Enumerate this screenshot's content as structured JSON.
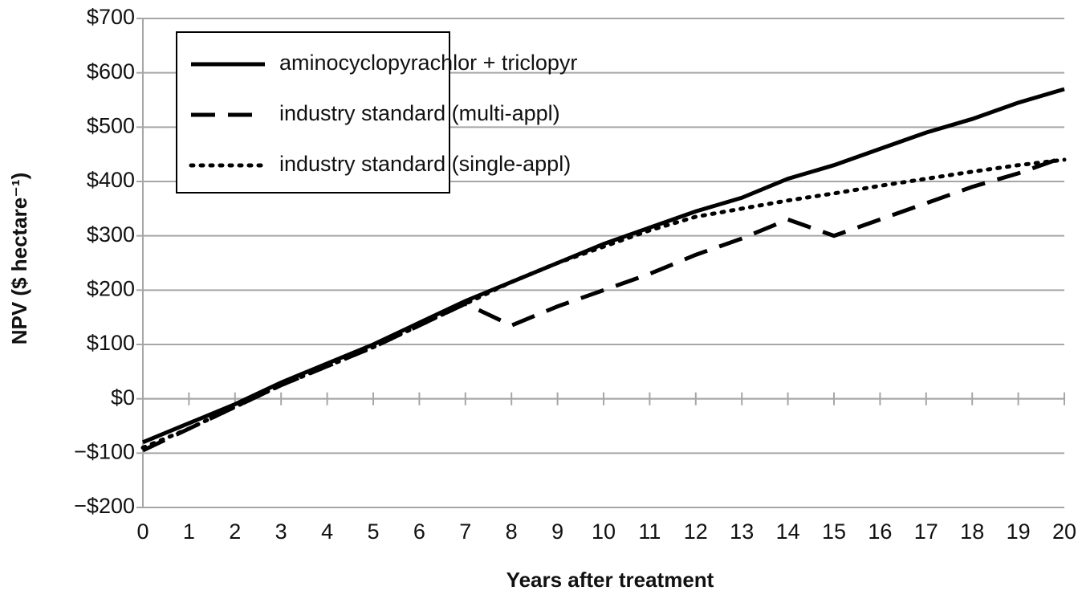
{
  "chart_data": {
    "type": "line",
    "x_label": "Years after treatment",
    "y_label": "NPV ($ hectare⁻¹)",
    "x": [
      0,
      1,
      2,
      3,
      4,
      5,
      6,
      7,
      8,
      9,
      10,
      11,
      12,
      13,
      14,
      15,
      16,
      17,
      18,
      19,
      20
    ],
    "series": [
      {
        "name": "aminocyclopyrachlor + triclopyr",
        "color": "#000000",
        "style": "solid",
        "values": [
          -80,
          -45,
          -10,
          30,
          65,
          100,
          140,
          180,
          215,
          250,
          285,
          315,
          345,
          370,
          405,
          430,
          460,
          490,
          515,
          545,
          570
        ]
      },
      {
        "name": "industry standard (multi-appl)",
        "color": "#000000",
        "style": "dashed",
        "values": [
          -95,
          -55,
          -15,
          25,
          60,
          95,
          135,
          175,
          135,
          170,
          200,
          230,
          265,
          295,
          330,
          300,
          330,
          360,
          390,
          415,
          445
        ]
      },
      {
        "name": "industry standard (single-appl)",
        "color": "#000000",
        "style": "dotted",
        "values": [
          -90,
          -55,
          -15,
          25,
          60,
          95,
          135,
          175,
          215,
          250,
          280,
          310,
          335,
          350,
          365,
          378,
          392,
          405,
          418,
          430,
          440
        ]
      }
    ],
    "xlim": [
      0,
      20
    ],
    "xticks": [
      0,
      1,
      2,
      3,
      4,
      5,
      6,
      7,
      8,
      9,
      10,
      11,
      12,
      13,
      14,
      15,
      16,
      17,
      18,
      19,
      20
    ],
    "ylim": [
      -200,
      700
    ],
    "yticks": [
      {
        "value": -200,
        "label": "−$200"
      },
      {
        "value": -100,
        "label": "−$100"
      },
      {
        "value": 0,
        "label": "$0"
      },
      {
        "value": 100,
        "label": "$100"
      },
      {
        "value": 200,
        "label": "$200"
      },
      {
        "value": 300,
        "label": "$300"
      },
      {
        "value": 400,
        "label": "$400"
      },
      {
        "value": 500,
        "label": "$500"
      },
      {
        "value": 600,
        "label": "$600"
      },
      {
        "value": 700,
        "label": "$700"
      }
    ],
    "grid": true,
    "legend": "upper left"
  }
}
